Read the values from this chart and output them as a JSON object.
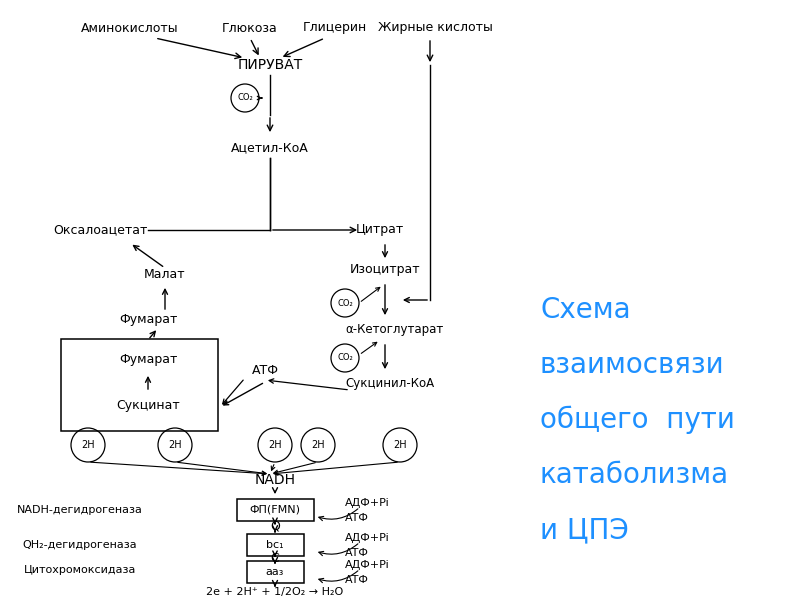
{
  "bg_color": "#FFFFFF",
  "text_color": "#000000",
  "blue_color": "#1E90FF",
  "title_lines": [
    "Схема",
    "взаимосвязи",
    "общего  пути",
    "катаболизма",
    "и ЦПЭ"
  ],
  "substrate_labels": [
    "Аминокислоты",
    "Глюкоза",
    "Глицерин",
    "Жирные кислоты"
  ]
}
